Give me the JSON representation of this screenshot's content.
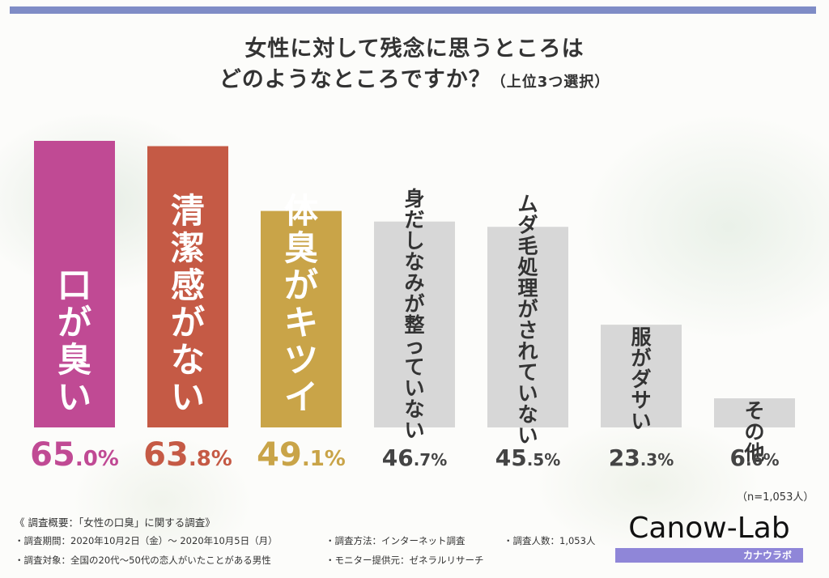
{
  "title_line1": "女性に対して残念に思うところは",
  "title_line2": "どのようなところですか？",
  "title_sub": "（上位3つ選択）",
  "chart_data": {
    "type": "bar",
    "title": "女性に対して残念に思うところは どのようなところですか？（上位3つ選択）",
    "categories": [
      "口が臭い",
      "清潔感がない",
      "体臭がキツイ",
      "身だしなみが整っていない",
      "ムダ毛処理がされていない",
      "服がダサい",
      "その他"
    ],
    "values": [
      65.0,
      63.8,
      49.1,
      46.7,
      45.5,
      23.3,
      6.6
    ],
    "value_labels": [
      {
        "num": "65.0",
        "unit": "%"
      },
      {
        "num": "63.8",
        "unit": "%"
      },
      {
        "num": "49.1",
        "unit": "%"
      },
      {
        "num": "46.7",
        "unit": "%"
      },
      {
        "num": "45.5",
        "unit": "%"
      },
      {
        "num": "23.3",
        "unit": "%"
      },
      {
        "num": "6.6",
        "unit": "%"
      }
    ],
    "bar_colors": [
      "#c04a94",
      "#c55a45",
      "#c9a448",
      "#d7d7d7",
      "#d7d7d7",
      "#d7d7d7",
      "#d7d7d7"
    ],
    "label_colors": [
      "#c04a94",
      "#c55a45",
      "#c9a448",
      "#444444",
      "#444444",
      "#444444",
      "#444444"
    ],
    "ylim": [
      0,
      65
    ],
    "grid": false,
    "legend": "none"
  },
  "sample_size": "（n=1,053人）",
  "survey": {
    "heading": "《 調査概要：「女性の口臭」に関する調査》",
    "period": "・調査期間：2020年10月2日（金）～ 2020年10月5日（月）",
    "method": "・調査方法：インターネット調査",
    "count": "・調査人数：1,053人",
    "target": "・調査対象：全国の20代～50代の恋人がいたことがある男性",
    "provider": "・モニター提供元：ゼネラルリサーチ"
  },
  "logo": {
    "name": "Canow-Lab",
    "kana": "カナウラボ",
    "strip_color": "#8f86d8"
  },
  "accent_bar_color": "#7f8cc6"
}
